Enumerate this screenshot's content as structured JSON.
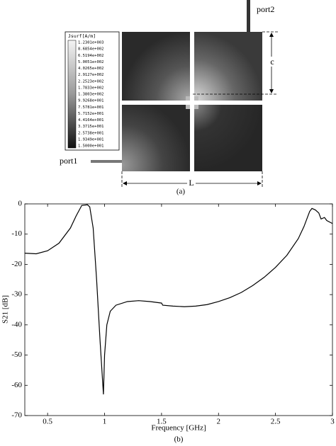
{
  "figure_a": {
    "colorbar_title": "Jsurf[A/m]",
    "colorbar_labels": [
      "1.2301e+003",
      "8.6854e+002",
      "6.5194e+002",
      "5.0051e+002",
      "4.0265e+002",
      "2.9127e+002",
      "2.2523e+002",
      "1.7833e+002",
      "1.3803e+002",
      "9.9268e+001",
      "7.5781e+001",
      "5.7152e+001",
      "4.4164e+001",
      "3.3715e+001",
      "2.5738e+001",
      "1.9349e+001",
      "1.5000e+001"
    ],
    "port1": "port1",
    "port2": "port2",
    "dim_c": "c",
    "dim_L": "L",
    "caption": "(a)"
  },
  "chart_data": {
    "type": "line",
    "x_label": "Frequency [GHz]",
    "y_label": "S21 [dB]",
    "caption": "(b)",
    "x": [
      0.3,
      0.4,
      0.5,
      0.6,
      0.7,
      0.75,
      0.8,
      0.85,
      0.87,
      0.9,
      0.93,
      0.96,
      0.98,
      0.99,
      1.0,
      1.02,
      1.05,
      1.1,
      1.2,
      1.3,
      1.4,
      1.5,
      1.51,
      1.6,
      1.7,
      1.8,
      1.9,
      2.0,
      2.1,
      2.2,
      2.3,
      2.4,
      2.5,
      2.6,
      2.7,
      2.75,
      2.8,
      2.82,
      2.85,
      2.88,
      2.9,
      2.93,
      2.95,
      3.0
    ],
    "values": [
      -16.3,
      -16.5,
      -15.5,
      -13,
      -8,
      -4,
      -0.5,
      -0.3,
      -1,
      -8,
      -25,
      -45,
      -57,
      -63,
      -50,
      -40,
      -35.5,
      -33.5,
      -32.3,
      -32,
      -32.3,
      -32.8,
      -33.5,
      -33.8,
      -34,
      -33.8,
      -33.3,
      -32.3,
      -31,
      -29.3,
      -27,
      -24.3,
      -21,
      -17,
      -11.5,
      -7.5,
      -2.5,
      -1.5,
      -2,
      -3,
      -5,
      -4.5,
      -5.5,
      -6.5
    ],
    "color": "#000000",
    "xlim": [
      0.3,
      3
    ],
    "xticks": [
      0.5,
      1,
      1.5,
      2,
      2.5,
      3
    ],
    "ylim": [
      -70,
      0
    ],
    "yticks": [
      0,
      -10,
      -20,
      -30,
      -40,
      -50,
      -60,
      -70
    ]
  }
}
